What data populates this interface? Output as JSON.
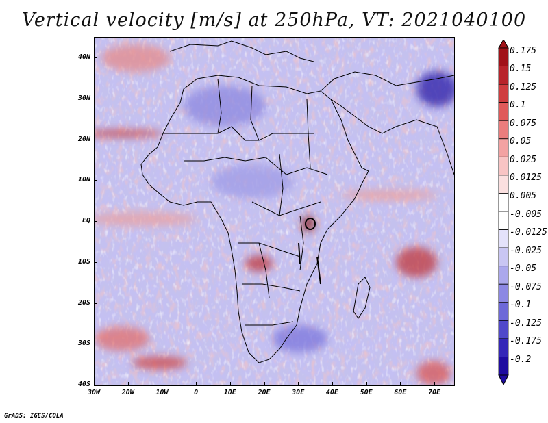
{
  "title": "Vertical velocity [m/s] at 250hPa, VT: 2021040100",
  "credit": "GrADS: IGES/COLA",
  "axes": {
    "lat_labels": [
      "40N",
      "30N",
      "20N",
      "10N",
      "EQ",
      "10S",
      "20S",
      "30S",
      "40S"
    ],
    "lon_labels": [
      "30W",
      "20W",
      "10W",
      "0",
      "10E",
      "20E",
      "30E",
      "40E",
      "50E",
      "60E",
      "70E"
    ]
  },
  "colorbar": {
    "labels": [
      "0.175",
      "0.15",
      "0.125",
      "0.1",
      "0.075",
      "0.05",
      "0.025",
      "0.0125",
      "0.005",
      "-0.005",
      "-0.0125",
      "-0.025",
      "-0.05",
      "-0.075",
      "-0.1",
      "-0.125",
      "-0.175",
      "-0.2"
    ],
    "colors": [
      "#a11218",
      "#b8242a",
      "#cf3d3f",
      "#e05a5a",
      "#eb7d7d",
      "#f3a2a2",
      "#f8c4c4",
      "#fbe0e0",
      "#ffffff",
      "#ffffff",
      "#e4e2fb",
      "#c9c6f3",
      "#aba8ec",
      "#8c88e3",
      "#6d69d8",
      "#5048ca",
      "#3426b8",
      "#1f0ca0"
    ]
  },
  "colors": {
    "red_dark": "#b0232a",
    "red_light": "#f4a6a6",
    "blue_dark": "#2a1aa8",
    "blue_light": "#c9c6f0",
    "coast": "#000000"
  }
}
